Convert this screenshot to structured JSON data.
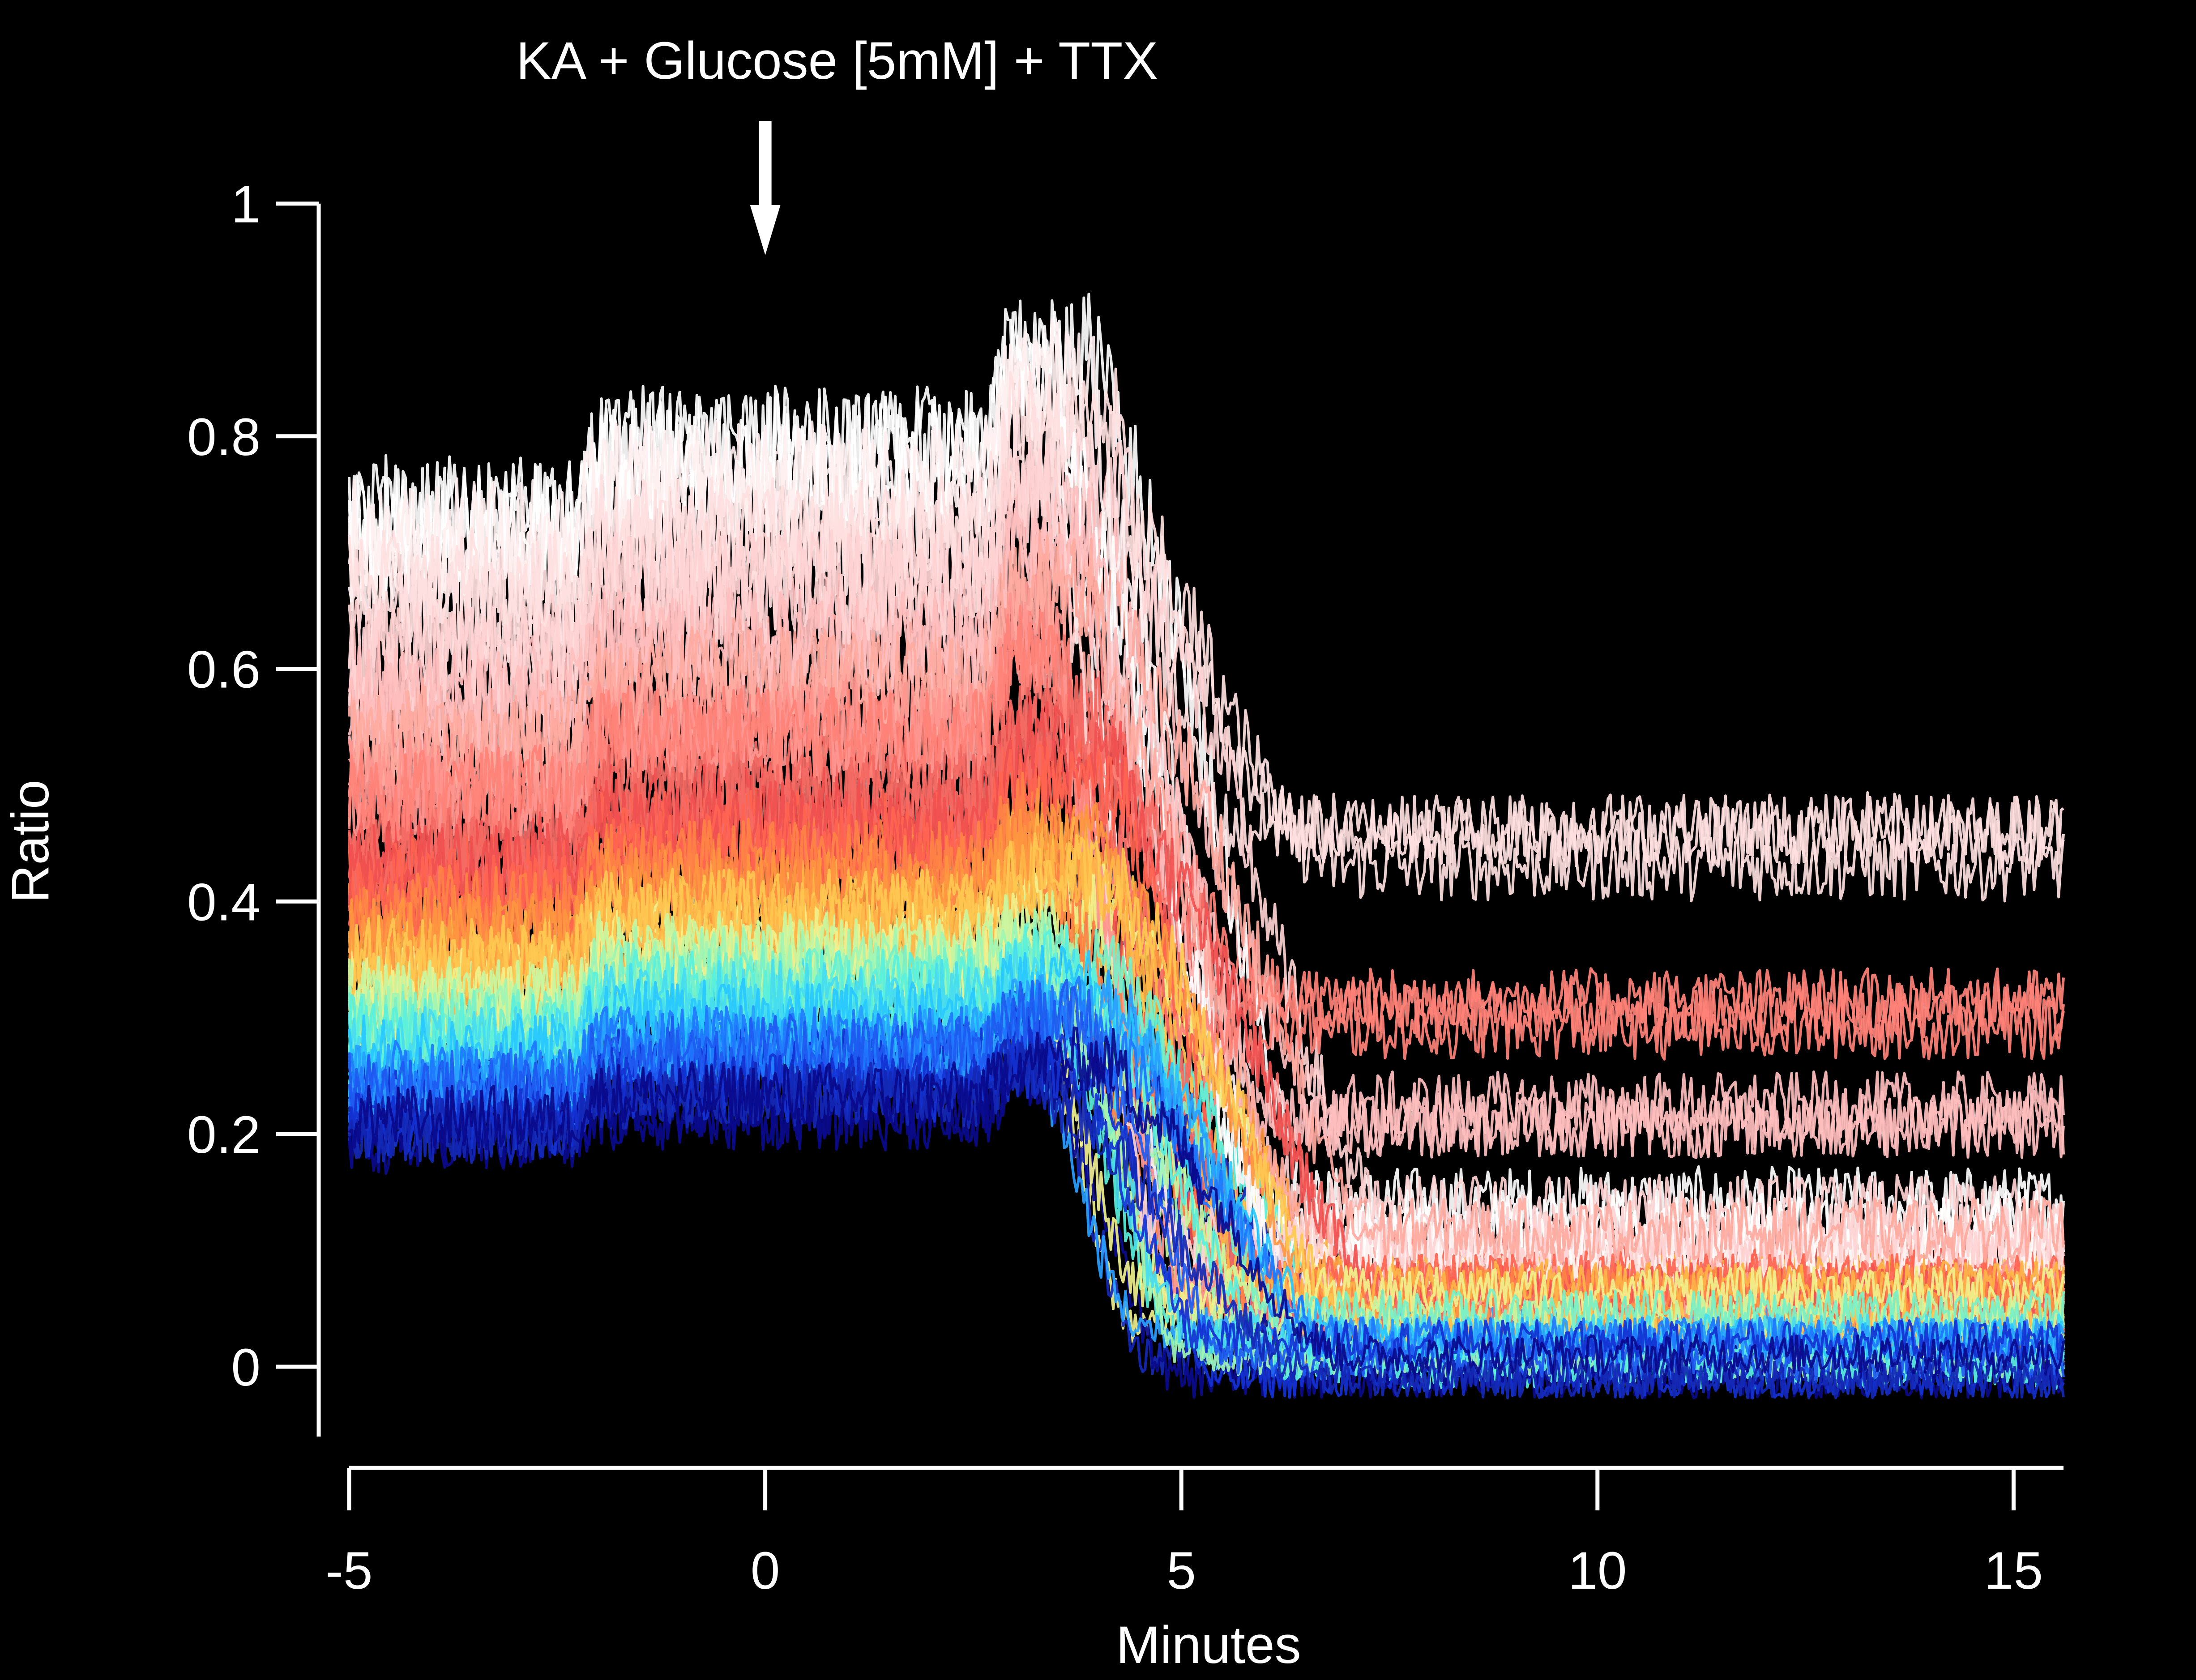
{
  "chart_data": {
    "type": "line",
    "annotation": {
      "text": "KA + Glucose [5mM] + TTX",
      "x": 0
    },
    "xlabel": "Minutes",
    "ylabel": "Ratio",
    "xlim": [
      -5,
      15.6
    ],
    "ylim": [
      -0.06,
      1
    ],
    "xticks": [
      -5,
      0,
      5,
      10,
      15
    ],
    "yticks": [
      0,
      0.2,
      0.4,
      0.6,
      0.8,
      1
    ],
    "xtick_labels": [
      "-5",
      "0",
      "5",
      "10",
      "15"
    ],
    "ytick_labels": [
      "0",
      "0.2",
      "0.4",
      "0.6",
      "0.8",
      "1"
    ],
    "grid": false,
    "legend": "none",
    "background": "#000000",
    "colormap": [
      "#0a0a8c",
      "#1432d2",
      "#1e78ff",
      "#28c8ff",
      "#5af0dc",
      "#a0f5a0",
      "#f0f08c",
      "#ffc850",
      "#ff9640",
      "#ff6450",
      "#f04646",
      "#ff8278",
      "#ffaaa0",
      "#ffd2d2",
      "#ffffff"
    ],
    "series_profiles": [
      {
        "color": "#ffffff",
        "baseline": 0.72,
        "pre_rise": 0.06,
        "peak": 0.86,
        "end": 0.12
      },
      {
        "color": "#fff0f0",
        "baseline": 0.7,
        "pre_rise": 0.05,
        "peak": 0.84,
        "end": 0.1
      },
      {
        "color": "#ffe0e0",
        "baseline": 0.66,
        "pre_rise": 0.05,
        "peak": 0.8,
        "end": 0.45
      },
      {
        "color": "#ffd2d2",
        "baseline": 0.62,
        "pre_rise": 0.06,
        "peak": 0.76,
        "end": 0.13
      },
      {
        "color": "#ffbebe",
        "baseline": 0.58,
        "pre_rise": 0.05,
        "peak": 0.72,
        "end": 0.22
      },
      {
        "color": "#ffaaa0",
        "baseline": 0.55,
        "pre_rise": 0.05,
        "peak": 0.68,
        "end": 0.1
      },
      {
        "color": "#ff9690",
        "baseline": 0.51,
        "pre_rise": 0.05,
        "peak": 0.64,
        "end": 0.08
      },
      {
        "color": "#ff8278",
        "baseline": 0.48,
        "pre_rise": 0.05,
        "peak": 0.6,
        "end": 0.3
      },
      {
        "color": "#f46a64",
        "baseline": 0.45,
        "pre_rise": 0.05,
        "peak": 0.56,
        "end": 0.07
      },
      {
        "color": "#f05050",
        "baseline": 0.43,
        "pre_rise": 0.04,
        "peak": 0.53,
        "end": 0.06
      },
      {
        "color": "#ff6450",
        "baseline": 0.41,
        "pre_rise": 0.04,
        "peak": 0.5,
        "end": 0.08
      },
      {
        "color": "#ff8246",
        "baseline": 0.39,
        "pre_rise": 0.04,
        "peak": 0.47,
        "end": 0.06
      },
      {
        "color": "#ff9640",
        "baseline": 0.37,
        "pre_rise": 0.04,
        "peak": 0.45,
        "end": 0.05
      },
      {
        "color": "#ffb446",
        "baseline": 0.35,
        "pre_rise": 0.04,
        "peak": 0.43,
        "end": 0.06
      },
      {
        "color": "#ffc850",
        "baseline": 0.34,
        "pre_rise": 0.04,
        "peak": 0.41,
        "end": 0.04
      },
      {
        "color": "#f0f08c",
        "baseline": 0.32,
        "pre_rise": 0.04,
        "peak": 0.39,
        "end": 0.05
      },
      {
        "color": "#c8f5a0",
        "baseline": 0.31,
        "pre_rise": 0.04,
        "peak": 0.37,
        "end": 0.04
      },
      {
        "color": "#a0f5b4",
        "baseline": 0.3,
        "pre_rise": 0.04,
        "peak": 0.36,
        "end": 0.03
      },
      {
        "color": "#78f0c8",
        "baseline": 0.29,
        "pre_rise": 0.04,
        "peak": 0.35,
        "end": 0.03
      },
      {
        "color": "#5af0dc",
        "baseline": 0.28,
        "pre_rise": 0.04,
        "peak": 0.34,
        "end": 0.02
      },
      {
        "color": "#46dcf0",
        "baseline": 0.27,
        "pre_rise": 0.04,
        "peak": 0.33,
        "end": 0.02
      },
      {
        "color": "#28c8ff",
        "baseline": 0.26,
        "pre_rise": 0.03,
        "peak": 0.32,
        "end": 0.01
      },
      {
        "color": "#28a0ff",
        "baseline": 0.25,
        "pre_rise": 0.03,
        "peak": 0.31,
        "end": 0.02
      },
      {
        "color": "#1e78ff",
        "baseline": 0.24,
        "pre_rise": 0.03,
        "peak": 0.3,
        "end": 0.01
      },
      {
        "color": "#1e5af0",
        "baseline": 0.23,
        "pre_rise": 0.03,
        "peak": 0.29,
        "end": 0.02
      },
      {
        "color": "#1432d2",
        "baseline": 0.22,
        "pre_rise": 0.03,
        "peak": 0.27,
        "end": 0.01
      },
      {
        "color": "#1428b4",
        "baseline": 0.21,
        "pre_rise": 0.03,
        "peak": 0.26,
        "end": 0.0
      },
      {
        "color": "#0a0a8c",
        "baseline": 0.2,
        "pre_rise": 0.02,
        "peak": 0.25,
        "end": 0.0
      }
    ]
  }
}
